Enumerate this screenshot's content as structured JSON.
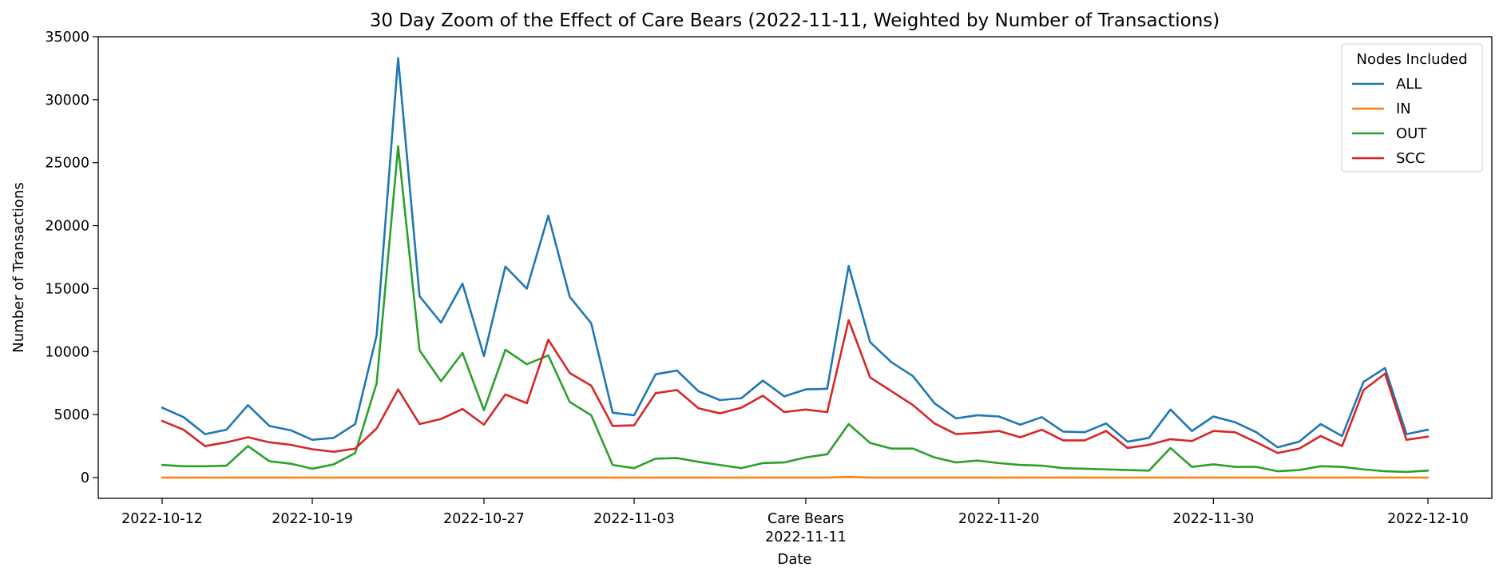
{
  "chart_data": {
    "type": "line",
    "title": "30 Day Zoom of the Effect of Care Bears (2022-11-11, Weighted by Number of Transactions)",
    "xlabel": "Date",
    "ylabel": "Number of Transactions",
    "ylim": [
      0,
      35000
    ],
    "yticks": [
      0,
      5000,
      10000,
      15000,
      20000,
      25000,
      30000,
      35000
    ],
    "xrange": [
      "2022-10-12",
      "2022-12-10"
    ],
    "xticks": [
      {
        "date": "2022-10-12",
        "label": "2022-10-12"
      },
      {
        "date": "2022-10-19",
        "label": "2022-10-19"
      },
      {
        "date": "2022-10-27",
        "label": "2022-10-27"
      },
      {
        "date": "2022-11-03",
        "label": "2022-11-03"
      },
      {
        "date": "2022-11-11",
        "label": "Care Bears",
        "label2": "2022-11-11"
      },
      {
        "date": "2022-11-20",
        "label": "2022-11-20"
      },
      {
        "date": "2022-11-30",
        "label": "2022-11-30"
      },
      {
        "date": "2022-12-10",
        "label": "2022-12-10"
      }
    ],
    "legend": {
      "title": "Nodes Included",
      "placement": "top-right"
    },
    "x": [
      "2022-10-12",
      "2022-10-13",
      "2022-10-14",
      "2022-10-15",
      "2022-10-16",
      "2022-10-17",
      "2022-10-18",
      "2022-10-19",
      "2022-10-20",
      "2022-10-21",
      "2022-10-22",
      "2022-10-23",
      "2022-10-24",
      "2022-10-25",
      "2022-10-26",
      "2022-10-27",
      "2022-10-28",
      "2022-10-29",
      "2022-10-30",
      "2022-10-31",
      "2022-11-01",
      "2022-11-02",
      "2022-11-03",
      "2022-11-04",
      "2022-11-05",
      "2022-11-06",
      "2022-11-07",
      "2022-11-08",
      "2022-11-09",
      "2022-11-10",
      "2022-11-11",
      "2022-11-12",
      "2022-11-13",
      "2022-11-14",
      "2022-11-15",
      "2022-11-16",
      "2022-11-17",
      "2022-11-18",
      "2022-11-19",
      "2022-11-20",
      "2022-11-21",
      "2022-11-22",
      "2022-11-23",
      "2022-11-24",
      "2022-11-25",
      "2022-11-26",
      "2022-11-27",
      "2022-11-28",
      "2022-11-29",
      "2022-11-30",
      "2022-12-01",
      "2022-12-02",
      "2022-12-03",
      "2022-12-04",
      "2022-12-05",
      "2022-12-06",
      "2022-12-07",
      "2022-12-08",
      "2022-12-09",
      "2022-12-10"
    ],
    "series": [
      {
        "name": "ALL",
        "color": "#1f77b4",
        "values": [
          5550,
          4800,
          3450,
          3800,
          5750,
          4100,
          3750,
          3000,
          3150,
          4250,
          11300,
          33300,
          14400,
          12300,
          15400,
          9650,
          16750,
          15000,
          20800,
          14350,
          12250,
          5150,
          4950,
          8200,
          8500,
          6850,
          6150,
          6300,
          7700,
          6450,
          7000,
          7050,
          16800,
          10750,
          9150,
          8050,
          5900,
          4700,
          4950,
          4850,
          4200,
          4800,
          3650,
          3600,
          4300,
          2850,
          3150,
          5400,
          3700,
          4850,
          4400,
          3600,
          2400,
          2850,
          4250,
          3300,
          7600,
          8700,
          3450,
          3800
        ]
      },
      {
        "name": "IN",
        "color": "#ff7f0e",
        "values": [
          0,
          0,
          0,
          0,
          0,
          0,
          0,
          0,
          0,
          0,
          0,
          0,
          0,
          0,
          0,
          0,
          0,
          0,
          0,
          0,
          0,
          0,
          0,
          0,
          0,
          0,
          0,
          0,
          0,
          0,
          0,
          0,
          50,
          0,
          0,
          0,
          0,
          0,
          0,
          0,
          0,
          0,
          0,
          0,
          0,
          0,
          0,
          0,
          0,
          0,
          0,
          0,
          0,
          0,
          0,
          0,
          0,
          0,
          0,
          0
        ]
      },
      {
        "name": "OUT",
        "color": "#2ca02c",
        "values": [
          1000,
          900,
          900,
          950,
          2500,
          1300,
          1100,
          700,
          1050,
          1950,
          7500,
          26300,
          10100,
          7650,
          9900,
          5350,
          10150,
          9000,
          9700,
          6000,
          4950,
          1000,
          750,
          1500,
          1550,
          1250,
          1000,
          750,
          1150,
          1200,
          1600,
          1850,
          4250,
          2750,
          2300,
          2300,
          1600,
          1200,
          1350,
          1150,
          1000,
          950,
          750,
          700,
          650,
          600,
          550,
          2350,
          850,
          1050,
          850,
          850,
          500,
          600,
          900,
          850,
          650,
          500,
          450,
          550
        ]
      },
      {
        "name": "SCC",
        "color": "#d62728",
        "values": [
          4500,
          3800,
          2500,
          2800,
          3200,
          2800,
          2600,
          2250,
          2050,
          2300,
          3900,
          7000,
          4250,
          4650,
          5450,
          4200,
          6600,
          5900,
          10950,
          8300,
          7300,
          4100,
          4150,
          6700,
          6950,
          5500,
          5100,
          5550,
          6500,
          5200,
          5400,
          5200,
          12500,
          7950,
          6850,
          5750,
          4300,
          3450,
          3550,
          3700,
          3200,
          3800,
          2950,
          2950,
          3700,
          2350,
          2600,
          3050,
          2900,
          3700,
          3600,
          2800,
          1950,
          2300,
          3300,
          2500,
          6950,
          8250,
          3000,
          3250
        ]
      }
    ]
  }
}
